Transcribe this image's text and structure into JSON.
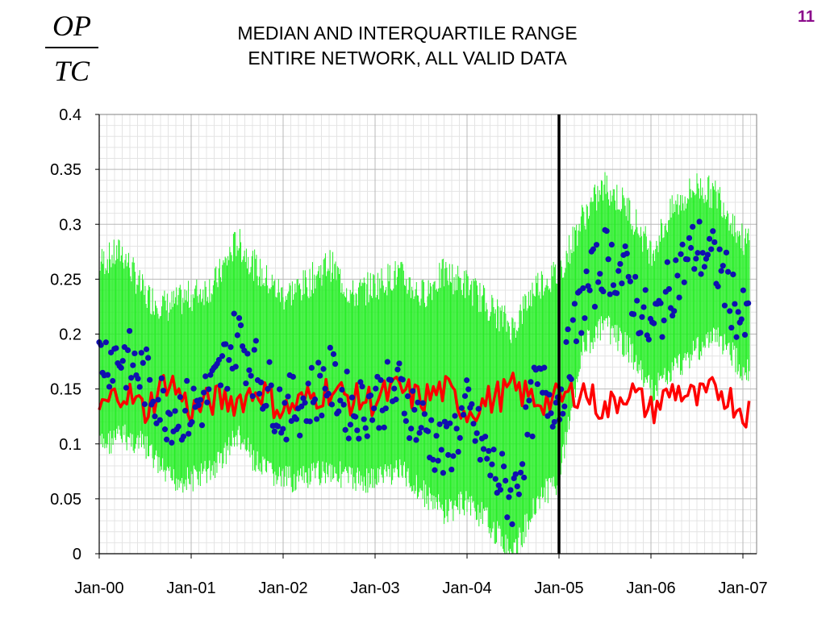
{
  "slide_number": "11",
  "ratio": {
    "numerator": "OP",
    "denominator": "TC"
  },
  "chart_data": {
    "type": "line",
    "title": [
      "MEDIAN AND INTERQUARTILE RANGE",
      "ENTIRE NETWORK, ALL VALID DATA"
    ],
    "xlabel": "",
    "ylabel": "",
    "ylim": [
      0,
      0.4
    ],
    "yticks": [
      "0",
      "0.05",
      "0.1",
      "0.15",
      "0.2",
      "0.25",
      "0.3",
      "0.35",
      "0.4"
    ],
    "yticks_values": [
      0,
      0.05,
      0.1,
      0.15,
      0.2,
      0.25,
      0.3,
      0.35,
      0.4
    ],
    "xticks": [
      "Jan-00",
      "Jan-01",
      "Jan-02",
      "Jan-03",
      "Jan-04",
      "Jan-05",
      "Jan-06",
      "Jan-07"
    ],
    "xlim": [
      "2000-01",
      "2007-02"
    ],
    "grid": true,
    "vertical_marker": "2005-01",
    "colors": {
      "range": "#22ee22",
      "median": "#1010b0",
      "line": "#ff0000",
      "marker": "#000000"
    },
    "series": [
      {
        "style": "green range bars",
        "x": [
          "2000-01",
          "2000-04",
          "2000-07",
          "2000-10",
          "2001-01",
          "2001-04",
          "2001-07",
          "2001-10",
          "2002-01",
          "2002-04",
          "2002-07",
          "2002-10",
          "2003-01",
          "2003-04",
          "2003-07",
          "2003-10",
          "2004-01",
          "2004-04",
          "2004-07",
          "2004-10",
          "2005-01",
          "2005-04",
          "2005-07",
          "2005-10",
          "2006-01",
          "2006-04",
          "2006-07",
          "2006-10",
          "2007-01"
        ],
        "low": [
          0.11,
          0.12,
          0.11,
          0.08,
          0.08,
          0.09,
          0.12,
          0.09,
          0.08,
          0.08,
          0.09,
          0.08,
          0.08,
          0.09,
          0.07,
          0.05,
          0.06,
          0.04,
          0.01,
          0.06,
          0.08,
          0.2,
          0.22,
          0.2,
          0.16,
          0.18,
          0.2,
          0.21,
          0.18
        ],
        "high": [
          0.26,
          0.27,
          0.23,
          0.22,
          0.23,
          0.24,
          0.28,
          0.25,
          0.23,
          0.24,
          0.26,
          0.23,
          0.24,
          0.25,
          0.23,
          0.25,
          0.24,
          0.22,
          0.2,
          0.24,
          0.25,
          0.3,
          0.33,
          0.31,
          0.27,
          0.31,
          0.33,
          0.32,
          0.28
        ]
      },
      {
        "style": "blue median dots",
        "x": [
          "2000-01",
          "2000-04",
          "2000-07",
          "2000-10",
          "2001-01",
          "2001-04",
          "2001-07",
          "2001-10",
          "2002-01",
          "2002-04",
          "2002-07",
          "2002-10",
          "2003-01",
          "2003-04",
          "2003-07",
          "2003-10",
          "2004-01",
          "2004-04",
          "2004-07",
          "2004-10",
          "2005-01",
          "2005-04",
          "2005-07",
          "2005-10",
          "2006-01",
          "2006-04",
          "2006-07",
          "2006-10",
          "2007-01"
        ],
        "values": [
          0.18,
          0.18,
          0.16,
          0.13,
          0.13,
          0.15,
          0.2,
          0.16,
          0.13,
          0.14,
          0.16,
          0.13,
          0.14,
          0.15,
          0.12,
          0.09,
          0.13,
          0.08,
          0.05,
          0.15,
          0.14,
          0.23,
          0.27,
          0.25,
          0.2,
          0.25,
          0.28,
          0.26,
          0.21
        ]
      },
      {
        "style": "red line",
        "x": [
          "2000-01",
          "2000-04",
          "2000-07",
          "2000-10",
          "2001-01",
          "2001-04",
          "2001-07",
          "2001-10",
          "2002-01",
          "2002-04",
          "2002-07",
          "2002-10",
          "2003-01",
          "2003-04",
          "2003-07",
          "2003-10",
          "2004-01",
          "2004-04",
          "2004-07",
          "2004-10",
          "2005-01",
          "2005-04",
          "2005-07",
          "2005-10",
          "2006-01",
          "2006-04",
          "2006-07",
          "2006-10",
          "2007-01"
        ],
        "values": [
          0.13,
          0.15,
          0.13,
          0.16,
          0.13,
          0.14,
          0.14,
          0.15,
          0.13,
          0.14,
          0.15,
          0.14,
          0.14,
          0.15,
          0.14,
          0.15,
          0.13,
          0.14,
          0.15,
          0.14,
          0.14,
          0.15,
          0.13,
          0.15,
          0.13,
          0.15,
          0.14,
          0.15,
          0.13
        ]
      }
    ]
  }
}
